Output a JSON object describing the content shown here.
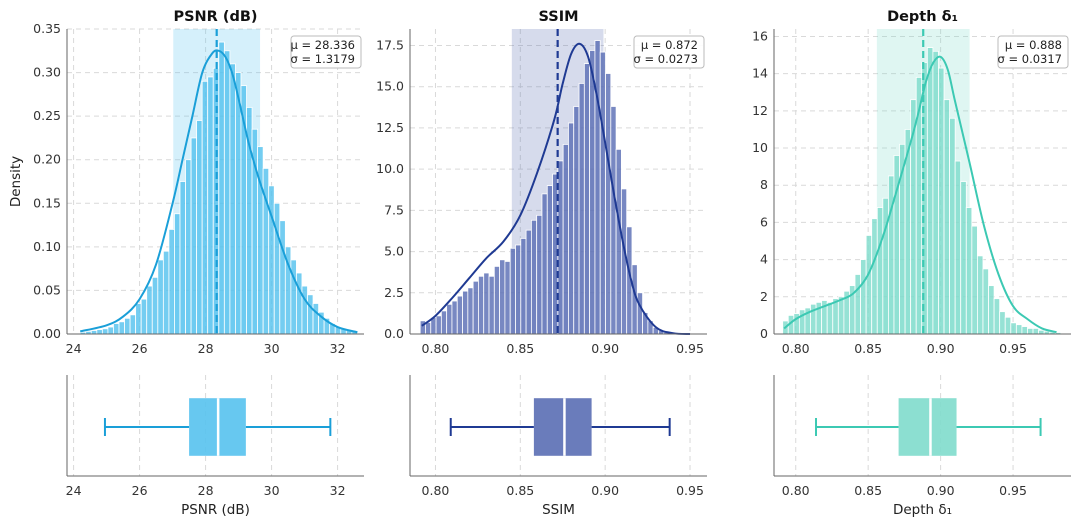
{
  "chart_data": [
    {
      "type": "histogram",
      "title": "PSNR (dB)",
      "xlabel": "PSNR (dB)",
      "ylabel": "Density",
      "color": "#1a9fd8",
      "fill_color": "#56c2ee",
      "xlim": [
        23.8,
        32.8
      ],
      "ylim": [
        0,
        0.35
      ],
      "xticks": [
        24,
        26,
        28,
        30,
        32
      ],
      "xtick_labels": [
        "24",
        "26",
        "28",
        "30",
        "32"
      ],
      "yticks": [
        0,
        0.05,
        0.1,
        0.15,
        0.2,
        0.25,
        0.3,
        0.35
      ],
      "ytick_labels": [
        "0.00",
        "0.05",
        "0.10",
        "0.15",
        "0.20",
        "0.25",
        "0.30",
        "0.35"
      ],
      "mean": 28.336,
      "std": 1.3179,
      "mean_label": "μ = 28.336",
      "std_label": "σ = 1.3179",
      "band": [
        27.02,
        29.65
      ],
      "bins": [
        24.2,
        32.6,
        50
      ],
      "densities": [
        0.002,
        0.003,
        0.004,
        0.005,
        0.006,
        0.008,
        0.012,
        0.014,
        0.018,
        0.022,
        0.035,
        0.04,
        0.055,
        0.065,
        0.085,
        0.095,
        0.12,
        0.138,
        0.175,
        0.2,
        0.225,
        0.245,
        0.29,
        0.295,
        0.305,
        0.335,
        0.325,
        0.31,
        0.3,
        0.285,
        0.26,
        0.235,
        0.215,
        0.19,
        0.17,
        0.15,
        0.13,
        0.1,
        0.085,
        0.07,
        0.055,
        0.045,
        0.035,
        0.025,
        0.018,
        0.012,
        0.008,
        0.006,
        0.004,
        0.003
      ],
      "kde": {
        "x": [
          24.2,
          25.0,
          25.5,
          26.0,
          26.5,
          27.0,
          27.3,
          27.6,
          27.9,
          28.2,
          28.4,
          28.6,
          28.8,
          29.0,
          29.3,
          29.6,
          30.0,
          30.5,
          31.0,
          31.5,
          32.0,
          32.6
        ],
        "y": [
          0.003,
          0.01,
          0.02,
          0.04,
          0.08,
          0.15,
          0.2,
          0.25,
          0.3,
          0.322,
          0.325,
          0.318,
          0.3,
          0.27,
          0.22,
          0.18,
          0.135,
          0.08,
          0.04,
          0.02,
          0.008,
          0.002
        ]
      },
      "box": {
        "whisker_low": 24.95,
        "q1": 27.5,
        "median": 28.38,
        "q3": 29.22,
        "whisker_high": 31.78
      }
    },
    {
      "type": "histogram",
      "title": "SSIM",
      "xlabel": "SSIM",
      "ylabel": "",
      "color": "#1f3a93",
      "fill_color": "#5a6eb4",
      "xlim": [
        0.785,
        0.96
      ],
      "ylim": [
        0,
        18.5
      ],
      "xticks": [
        0.8,
        0.85,
        0.9,
        0.95
      ],
      "xtick_labels": [
        "0.80",
        "0.85",
        "0.90",
        "0.95"
      ],
      "yticks": [
        0,
        2.5,
        5,
        7.5,
        10,
        12.5,
        15,
        17.5
      ],
      "ytick_labels": [
        "0.0",
        "2.5",
        "5.0",
        "7.5",
        "10.0",
        "12.5",
        "15.0",
        "17.5"
      ],
      "mean": 0.872,
      "std": 0.0273,
      "mean_label": "μ = 0.872",
      "std_label": "σ = 0.0273",
      "band": [
        0.845,
        0.899
      ],
      "bins": [
        0.791,
        0.947,
        50
      ],
      "densities": [
        0.8,
        0.7,
        1.0,
        1.1,
        1.4,
        1.8,
        2.0,
        2.3,
        2.6,
        2.8,
        3.2,
        3.5,
        3.7,
        3.5,
        4.1,
        4.5,
        4.4,
        5.2,
        5.4,
        5.8,
        6.3,
        6.9,
        7.2,
        8.5,
        9.0,
        9.7,
        10.5,
        11.5,
        12.8,
        13.8,
        15.2,
        16.4,
        17.2,
        17.8,
        17.1,
        15.8,
        13.8,
        11.2,
        8.8,
        6.5,
        4.2,
        2.5,
        1.3,
        0.8,
        0.4,
        0.2,
        0.1,
        0.05,
        0.03,
        0.02
      ],
      "kde": {
        "x": [
          0.792,
          0.8,
          0.81,
          0.82,
          0.83,
          0.84,
          0.85,
          0.86,
          0.87,
          0.875,
          0.88,
          0.885,
          0.89,
          0.895,
          0.9,
          0.905,
          0.91,
          0.915,
          0.92,
          0.93,
          0.94,
          0.95
        ],
        "y": [
          0.5,
          1.1,
          2.2,
          3.4,
          4.6,
          5.6,
          7.2,
          9.8,
          13.0,
          15.2,
          17.0,
          17.6,
          16.8,
          14.5,
          11.6,
          8.6,
          5.8,
          3.4,
          1.8,
          0.4,
          0.05,
          0.0
        ]
      },
      "box": {
        "whisker_low": 0.809,
        "q1": 0.858,
        "median": 0.876,
        "q3": 0.892,
        "whisker_high": 0.938
      }
    },
    {
      "type": "histogram",
      "title": "Depth δ₁",
      "xlabel": "Depth δ₁",
      "ylabel": "",
      "color": "#3cc9b3",
      "fill_color": "#7fdccc",
      "xlim": [
        0.785,
        0.99
      ],
      "ylim": [
        0,
        16.4
      ],
      "xticks": [
        0.8,
        0.85,
        0.9,
        0.95
      ],
      "xtick_labels": [
        "0.80",
        "0.85",
        "0.90",
        "0.95"
      ],
      "yticks": [
        0,
        2,
        4,
        6,
        8,
        10,
        12,
        14,
        16
      ],
      "ytick_labels": [
        "0",
        "2",
        "4",
        "6",
        "8",
        "10",
        "12",
        "14",
        "16"
      ],
      "mean": 0.888,
      "std": 0.0317,
      "mean_label": "μ = 0.888",
      "std_label": "σ = 0.0317",
      "band": [
        0.856,
        0.92
      ],
      "bins": [
        0.791,
        0.983,
        50
      ],
      "densities": [
        0.7,
        1.0,
        1.1,
        1.3,
        1.4,
        1.6,
        1.7,
        1.8,
        1.7,
        1.9,
        2.0,
        2.3,
        2.6,
        3.2,
        4.0,
        5.3,
        6.2,
        6.8,
        7.3,
        8.5,
        9.6,
        10.2,
        11.0,
        12.6,
        13.8,
        14.6,
        15.4,
        15.2,
        14.3,
        12.6,
        11.6,
        9.3,
        8.2,
        6.8,
        5.8,
        4.2,
        3.5,
        2.6,
        1.9,
        1.2,
        0.9,
        0.6,
        0.5,
        0.4,
        0.3,
        0.3,
        0.2,
        0.15,
        0.1,
        0.08
      ],
      "kde": {
        "x": [
          0.792,
          0.8,
          0.81,
          0.82,
          0.83,
          0.84,
          0.85,
          0.86,
          0.87,
          0.88,
          0.885,
          0.89,
          0.895,
          0.9,
          0.905,
          0.91,
          0.92,
          0.93,
          0.94,
          0.95,
          0.96,
          0.97,
          0.98
        ],
        "y": [
          0.3,
          0.8,
          1.2,
          1.5,
          1.8,
          2.2,
          3.2,
          5.2,
          7.8,
          10.5,
          12.0,
          13.6,
          14.6,
          14.9,
          14.2,
          12.5,
          9.2,
          5.8,
          3.2,
          1.5,
          0.8,
          0.3,
          0.1
        ]
      },
      "box": {
        "whisker_low": 0.814,
        "q1": 0.871,
        "median": 0.893,
        "q3": 0.911,
        "whisker_high": 0.969
      }
    }
  ]
}
